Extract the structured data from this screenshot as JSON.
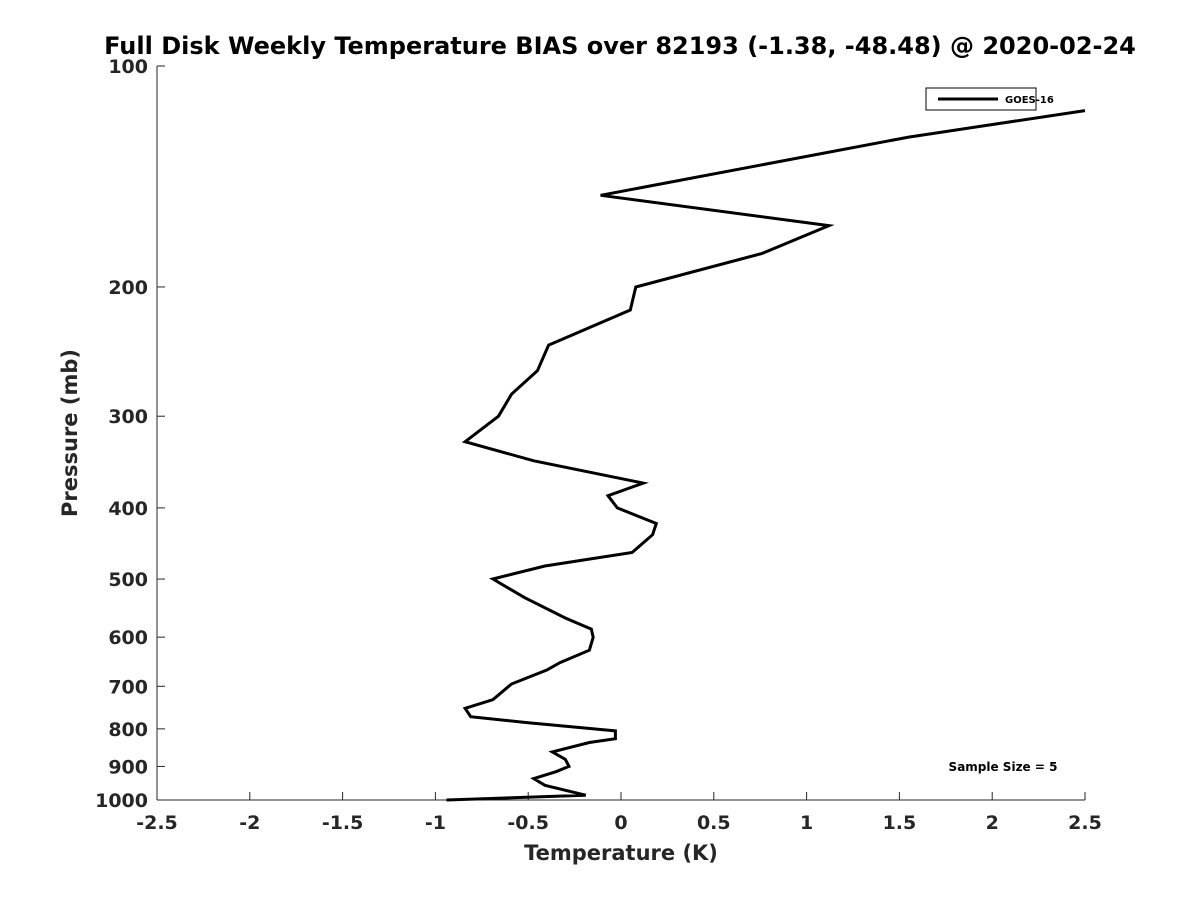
{
  "chart_data": {
    "type": "line",
    "title": "Full Disk Weekly Temperature BIAS over 82193 (-1.38, -48.48) @ 2020-02-24",
    "xlabel": "Temperature (K)",
    "ylabel": "Pressure (mb)",
    "xlim": [
      -2.5,
      2.5
    ],
    "ylim": [
      100,
      1000
    ],
    "yscale": "log",
    "yreversed": true,
    "grid": false,
    "x_ticks": [
      -2.5,
      -2,
      -1.5,
      -1,
      -0.5,
      0,
      0.5,
      1,
      1.5,
      2,
      2.5
    ],
    "x_tick_labels": [
      "-2.5",
      "-2",
      "-1.5",
      "-1",
      "-0.5",
      "0",
      "0.5",
      "1",
      "1.5",
      "2",
      "2.5"
    ],
    "y_ticks": [
      100,
      200,
      300,
      400,
      500,
      600,
      700,
      800,
      900,
      1000
    ],
    "y_tick_labels": [
      "100",
      "200",
      "300",
      "400",
      "500",
      "600",
      "700",
      "800",
      "900",
      "1000"
    ],
    "legend": {
      "position": "top-right",
      "entries": [
        "GOES-16"
      ]
    },
    "annotation": "Sample Size = 5",
    "series": [
      {
        "name": "GOES-16",
        "color": "#000000",
        "points": [
          {
            "x": 2.5,
            "p": 115
          },
          {
            "x": 1.55,
            "p": 125
          },
          {
            "x": -0.11,
            "p": 150
          },
          {
            "x": 1.12,
            "p": 165
          },
          {
            "x": 0.76,
            "p": 180
          },
          {
            "x": 0.08,
            "p": 200
          },
          {
            "x": 0.05,
            "p": 215
          },
          {
            "x": -0.39,
            "p": 240
          },
          {
            "x": -0.45,
            "p": 260
          },
          {
            "x": -0.59,
            "p": 280
          },
          {
            "x": -0.66,
            "p": 300
          },
          {
            "x": -0.84,
            "p": 325
          },
          {
            "x": -0.47,
            "p": 345
          },
          {
            "x": 0.12,
            "p": 370
          },
          {
            "x": -0.07,
            "p": 385
          },
          {
            "x": -0.02,
            "p": 400
          },
          {
            "x": 0.19,
            "p": 420
          },
          {
            "x": 0.17,
            "p": 435
          },
          {
            "x": 0.06,
            "p": 460
          },
          {
            "x": -0.41,
            "p": 480
          },
          {
            "x": -0.69,
            "p": 500
          },
          {
            "x": -0.52,
            "p": 530
          },
          {
            "x": -0.3,
            "p": 565
          },
          {
            "x": -0.16,
            "p": 585
          },
          {
            "x": -0.15,
            "p": 600
          },
          {
            "x": -0.17,
            "p": 625
          },
          {
            "x": -0.33,
            "p": 650
          },
          {
            "x": -0.4,
            "p": 665
          },
          {
            "x": -0.59,
            "p": 695
          },
          {
            "x": -0.69,
            "p": 730
          },
          {
            "x": -0.84,
            "p": 750
          },
          {
            "x": -0.81,
            "p": 770
          },
          {
            "x": -0.5,
            "p": 785
          },
          {
            "x": -0.03,
            "p": 805
          },
          {
            "x": -0.03,
            "p": 825
          },
          {
            "x": -0.17,
            "p": 835
          },
          {
            "x": -0.37,
            "p": 860
          },
          {
            "x": -0.3,
            "p": 880
          },
          {
            "x": -0.28,
            "p": 900
          },
          {
            "x": -0.35,
            "p": 915
          },
          {
            "x": -0.47,
            "p": 935
          },
          {
            "x": -0.41,
            "p": 955
          },
          {
            "x": -0.19,
            "p": 985
          },
          {
            "x": -0.94,
            "p": 1000
          }
        ]
      }
    ]
  }
}
